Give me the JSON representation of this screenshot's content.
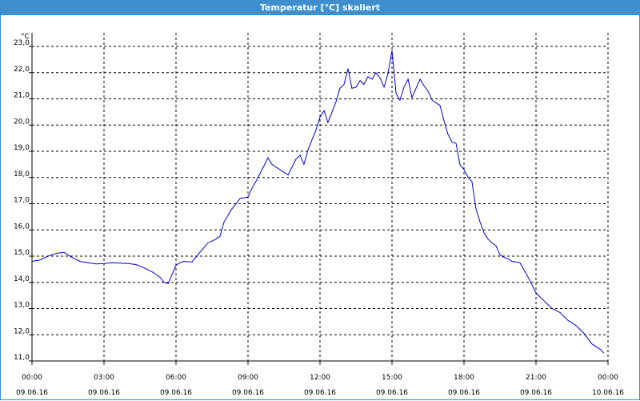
{
  "window": {
    "title": "Temperatur [°C] skaliert"
  },
  "chart_data": {
    "type": "line",
    "title": "Temperatur [°C] skaliert",
    "ylabel": "°C",
    "xlabel": "",
    "ylim": [
      11.0,
      23.0
    ],
    "yticks": [
      "11,0",
      "12,0",
      "13,0",
      "14,0",
      "15,0",
      "16,0",
      "17,0",
      "18,0",
      "19,0",
      "20,0",
      "21,0",
      "22,0",
      "23,0"
    ],
    "xlim_hours": [
      0,
      24
    ],
    "xticks": [
      {
        "time": "00:00",
        "date": "09.06.16"
      },
      {
        "time": "03:00",
        "date": "09.06.16"
      },
      {
        "time": "06:00",
        "date": "09.06.16"
      },
      {
        "time": "09:00",
        "date": "09.06.16"
      },
      {
        "time": "12:00",
        "date": "09.06.16"
      },
      {
        "time": "15:00",
        "date": "09.06.16"
      },
      {
        "time": "18:00",
        "date": "09.06.16"
      },
      {
        "time": "21:00",
        "date": "09.06.16"
      },
      {
        "time": "00:00",
        "date": "10.06.16"
      }
    ],
    "grid": true,
    "series": [
      {
        "color": "#0000cc",
        "x_hours": [
          0.0,
          0.33,
          0.67,
          1.0,
          1.33,
          1.5,
          1.67,
          2.0,
          2.33,
          2.67,
          3.0,
          3.33,
          3.67,
          4.0,
          4.33,
          4.67,
          5.0,
          5.33,
          5.5,
          5.67,
          6.0,
          6.17,
          6.33,
          6.67,
          7.0,
          7.33,
          7.67,
          7.83,
          8.0,
          8.33,
          8.67,
          9.0,
          9.17,
          9.33,
          9.67,
          9.83,
          10.0,
          10.33,
          10.67,
          11.0,
          11.17,
          11.33,
          11.5,
          11.67,
          11.83,
          12.0,
          12.17,
          12.33,
          12.5,
          12.67,
          12.83,
          13.0,
          13.17,
          13.33,
          13.5,
          13.67,
          13.83,
          14.0,
          14.17,
          14.33,
          14.5,
          14.67,
          14.83,
          15.0,
          15.17,
          15.33,
          15.5,
          15.67,
          15.83,
          16.0,
          16.17,
          16.33,
          16.5,
          16.67,
          16.83,
          17.0,
          17.17,
          17.33,
          17.5,
          17.67,
          17.83,
          18.0,
          18.17,
          18.33,
          18.5,
          18.67,
          18.83,
          19.0,
          19.17,
          19.33,
          19.5,
          19.67,
          19.83,
          20.0,
          20.33,
          20.67,
          21.0,
          21.33,
          21.67,
          22.0,
          22.33,
          22.67,
          23.0,
          23.33,
          23.67,
          23.83
        ],
        "values": [
          14.8,
          14.85,
          15.0,
          15.1,
          15.15,
          15.05,
          14.95,
          14.8,
          14.75,
          14.7,
          14.72,
          14.75,
          14.73,
          14.72,
          14.68,
          14.55,
          14.4,
          14.2,
          14.0,
          13.95,
          14.65,
          14.75,
          14.8,
          14.78,
          15.15,
          15.5,
          15.65,
          15.75,
          16.3,
          16.8,
          17.2,
          17.25,
          17.6,
          17.85,
          18.45,
          18.75,
          18.5,
          18.3,
          18.1,
          18.7,
          18.85,
          18.5,
          19.05,
          19.45,
          19.8,
          20.3,
          20.55,
          20.1,
          20.5,
          20.9,
          21.4,
          21.55,
          22.15,
          21.4,
          21.45,
          21.7,
          21.55,
          21.85,
          21.75,
          22.0,
          21.8,
          21.45,
          21.95,
          22.85,
          21.2,
          20.95,
          21.45,
          21.75,
          21.05,
          21.4,
          21.75,
          21.5,
          21.3,
          20.95,
          20.85,
          20.75,
          20.15,
          19.65,
          19.35,
          19.3,
          18.5,
          18.3,
          18.0,
          17.85,
          16.8,
          16.3,
          15.9,
          15.65,
          15.5,
          15.4,
          15.05,
          14.95,
          14.9,
          14.8,
          14.75,
          14.2,
          13.6,
          13.3,
          13.0,
          12.85,
          12.55,
          12.35,
          12.05,
          11.65,
          11.45,
          11.3
        ]
      }
    ]
  }
}
